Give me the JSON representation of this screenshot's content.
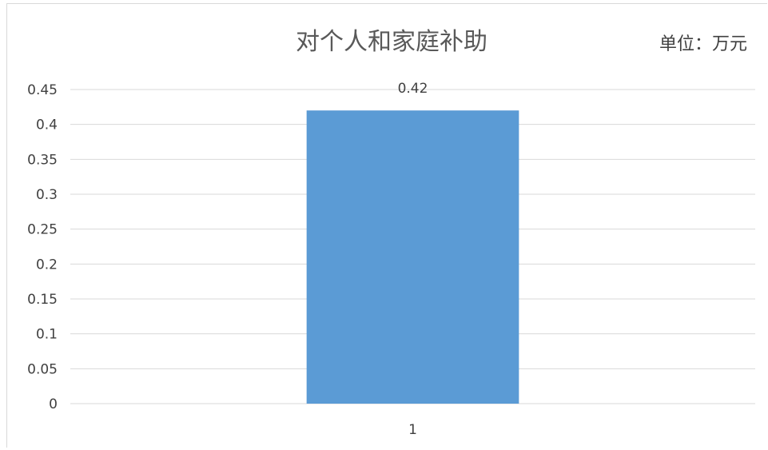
{
  "chart_data": {
    "type": "bar",
    "title": "对个人和家庭补助",
    "unit_label": "单位：万元",
    "categories": [
      "1"
    ],
    "values": [
      0.42
    ],
    "data_labels": [
      "0.42"
    ],
    "ylim": [
      0,
      0.45
    ],
    "yticks": [
      "0",
      "0.05",
      "0.1",
      "0.15",
      "0.2",
      "0.25",
      "0.3",
      "0.35",
      "0.4",
      "0.45"
    ],
    "grid": true,
    "legend": "none",
    "bar_color": "#5b9bd5"
  }
}
